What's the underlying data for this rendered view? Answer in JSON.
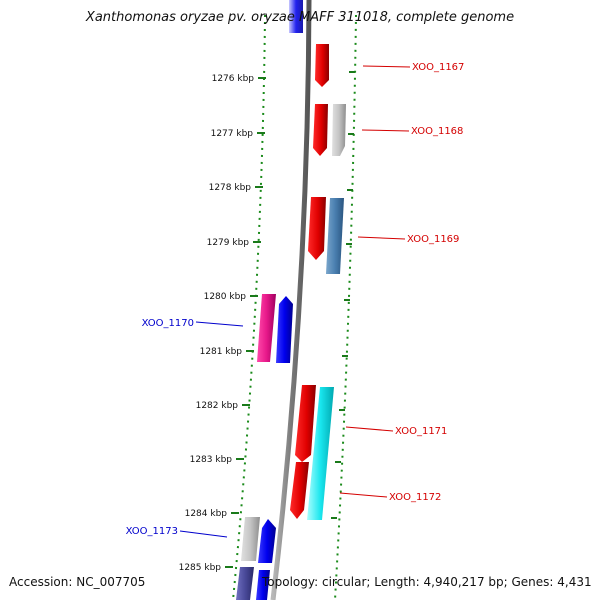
{
  "title": "Xanthomonas oryzae pv. oryzae MAFF 311018, complete genome",
  "accession": "Accession: NC_007705",
  "topology": "Topology: circular; Length: 4,940,217 bp; Genes: 4,431",
  "colors": {
    "backbone": "#888888",
    "tick": "#1a7a1a",
    "forward_label": "#d40000",
    "reverse_label": "#0000cc"
  },
  "ticks": [
    {
      "label": "1276 kbp"
    },
    {
      "label": "1277 kbp"
    },
    {
      "label": "1278 kbp"
    },
    {
      "label": "1279 kbp"
    },
    {
      "label": "1280 kbp"
    },
    {
      "label": "1281 kbp"
    },
    {
      "label": "1282 kbp"
    },
    {
      "label": "1283 kbp"
    },
    {
      "label": "1284 kbp"
    },
    {
      "label": "1285 kbp"
    }
  ],
  "gene_labels": [
    {
      "text": "XOO_1167",
      "strand": "forward"
    },
    {
      "text": "XOO_1168",
      "strand": "forward"
    },
    {
      "text": "XOO_1169",
      "strand": "forward"
    },
    {
      "text": "XOO_1170",
      "strand": "reverse"
    },
    {
      "text": "XOO_1171",
      "strand": "forward"
    },
    {
      "text": "XOO_1172",
      "strand": "forward"
    },
    {
      "text": "XOO_1173",
      "strand": "reverse"
    }
  ]
}
